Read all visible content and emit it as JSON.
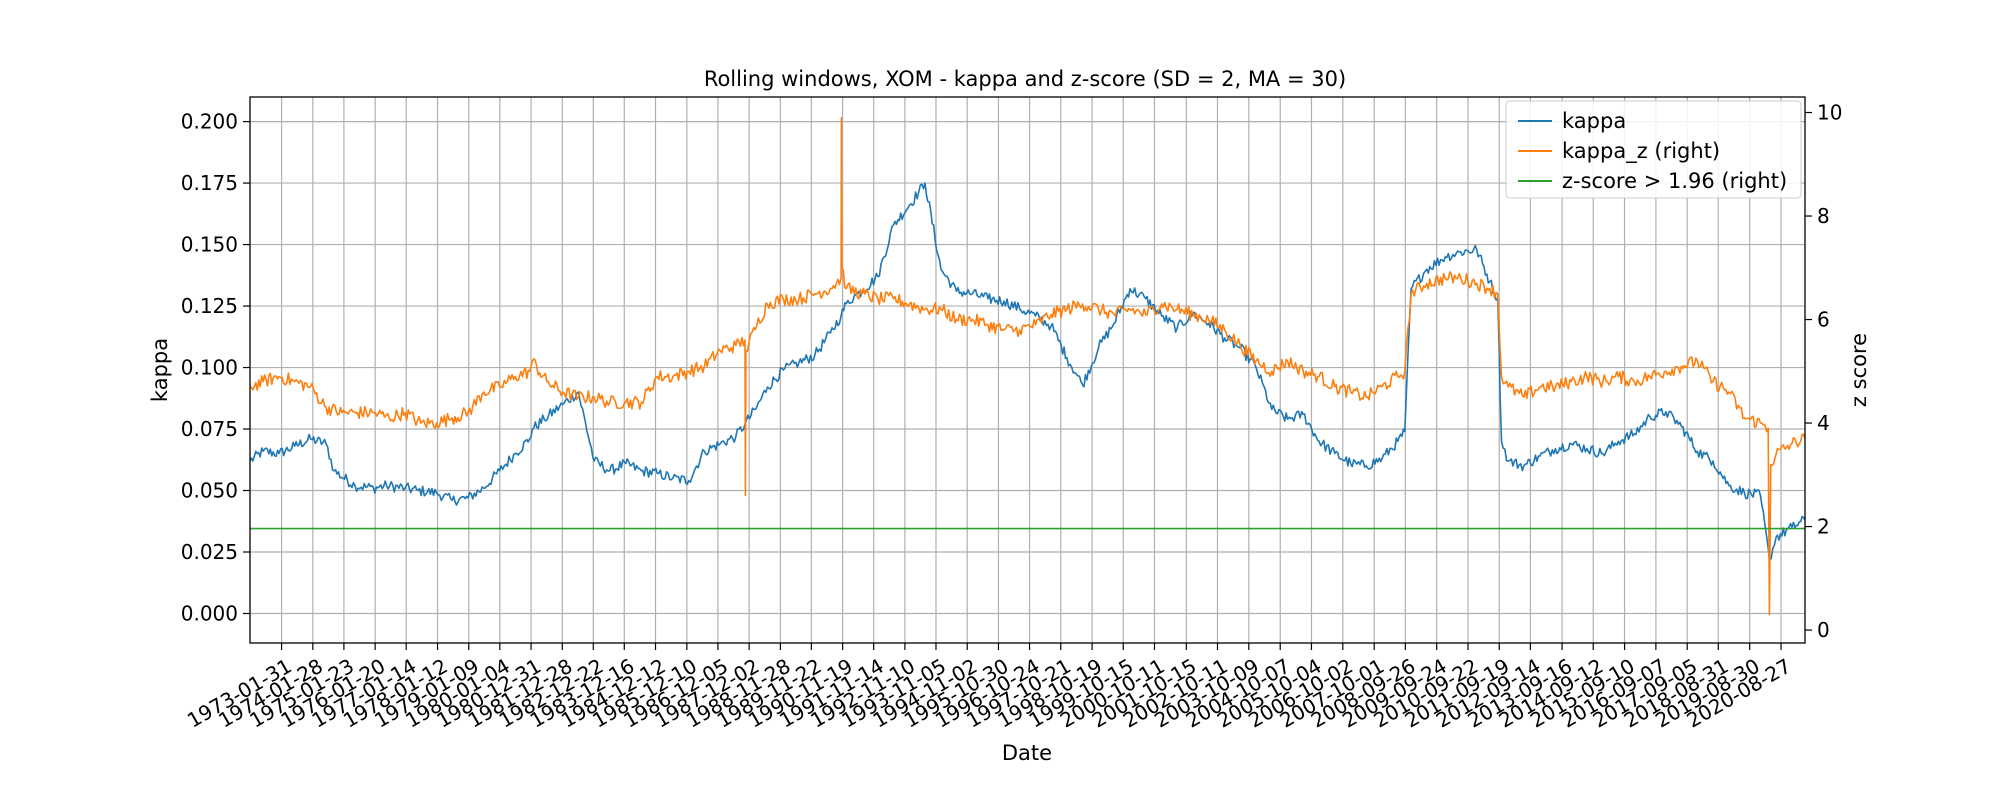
{
  "chart_data": {
    "type": "line",
    "title": "Rolling windows, XOM - kappa and z-score (SD = 2, MA = 30)",
    "xlabel": "Date",
    "ylabel": "kappa",
    "ylabel_right": "z score",
    "ylim": [
      -0.012,
      0.21
    ],
    "ylim_right": [
      -0.25,
      10.3
    ],
    "y_ticks": [
      "0.000",
      "0.025",
      "0.050",
      "0.075",
      "0.100",
      "0.125",
      "0.150",
      "0.175",
      "0.200"
    ],
    "y_ticks_right": [
      "0",
      "2",
      "4",
      "6",
      "8",
      "10"
    ],
    "x_tick_labels": [
      "1973-01-31",
      "1974-01-28",
      "1975-01-23",
      "1976-01-20",
      "1977-01-14",
      "1978-01-12",
      "1979-01-09",
      "1980-01-04",
      "1980-12-31",
      "1981-12-28",
      "1982-12-22",
      "1983-12-16",
      "1984-12-12",
      "1985-12-10",
      "1986-12-05",
      "1987-12-02",
      "1988-11-28",
      "1989-11-22",
      "1990-11-19",
      "1991-11-14",
      "1992-11-10",
      "1993-11-05",
      "1994-11-02",
      "1995-10-30",
      "1996-10-24",
      "1997-10-21",
      "1998-10-19",
      "1999-10-15",
      "2000-10-11",
      "2001-10-15",
      "2002-10-11",
      "2003-10-09",
      "2004-10-07",
      "2005-10-04",
      "2006-10-02",
      "2007-10-01",
      "2008-09-26",
      "2009-09-24",
      "2010-09-22",
      "2011-09-19",
      "2012-09-14",
      "2013-09-16",
      "2014-09-12",
      "2015-09-10",
      "2016-09-07",
      "2017-09-05",
      "2018-08-31",
      "2019-08-30",
      "2020-08-27"
    ],
    "grid": true,
    "legend_position": "top-right",
    "series": [
      {
        "name": "kappa",
        "axis": "left",
        "color": "#1f77b4",
        "x": [
          "1972-01-31",
          "1972-07-01",
          "1973-01-01",
          "1973-07-01",
          "1974-01-01",
          "1974-07-01",
          "1974-10-01",
          "1975-06-01",
          "1976-01-01",
          "1976-06-01",
          "1977-01-01",
          "1977-06-01",
          "1978-01-01",
          "1978-07-01",
          "1979-01-01",
          "1979-07-01",
          "1980-01-01",
          "1980-07-01",
          "1980-12-15",
          "1981-01-15",
          "1981-06-01",
          "1982-01-01",
          "1982-07-01",
          "1983-01-01",
          "1983-07-01",
          "1984-01-01",
          "1984-07-01",
          "1985-01-01",
          "1985-07-01",
          "1986-01-01",
          "1986-07-01",
          "1987-01-01",
          "1987-07-01",
          "1987-10-15",
          "1988-03-01",
          "1988-07-01",
          "1989-01-01",
          "1989-07-01",
          "1990-01-01",
          "1990-07-01",
          "1990-11-01",
          "1991-01-01",
          "1991-04-01",
          "1991-07-01",
          "1992-01-01",
          "1992-07-01",
          "1993-01-01",
          "1993-07-01",
          "1994-01-01",
          "1994-07-01",
          "1995-01-01",
          "1995-07-01",
          "1996-01-01",
          "1996-07-01",
          "1997-01-01",
          "1997-07-01",
          "1998-01-01",
          "1998-07-01",
          "1999-01-01",
          "1999-07-01",
          "2000-01-01",
          "2000-07-01",
          "2001-01-01",
          "2001-07-01",
          "2002-01-01",
          "2002-07-01",
          "2003-01-01",
          "2003-07-01",
          "2004-01-01",
          "2004-07-01",
          "2005-01-01",
          "2005-07-01",
          "2006-01-01",
          "2006-07-01",
          "2007-01-01",
          "2007-07-01",
          "2008-01-01",
          "2008-07-01",
          "2008-09-20",
          "2008-12-01",
          "2009-06-01",
          "2010-01-01",
          "2010-07-01",
          "2011-01-01",
          "2011-06-01",
          "2011-09-01",
          "2011-10-15",
          "2012-01-01",
          "2012-07-01",
          "2013-01-01",
          "2013-07-01",
          "2014-01-01",
          "2014-07-01",
          "2015-01-01",
          "2015-07-01",
          "2016-01-01",
          "2016-07-01",
          "2017-01-01",
          "2017-07-01",
          "2018-01-01",
          "2018-07-01",
          "2019-01-01",
          "2019-07-01",
          "2020-01-01",
          "2020-04-15",
          "2020-07-01",
          "2021-01-01",
          "2021-06-01"
        ],
        "y": [
          0.062,
          0.066,
          0.065,
          0.068,
          0.071,
          0.069,
          0.058,
          0.052,
          0.051,
          0.052,
          0.051,
          0.05,
          0.049,
          0.046,
          0.047,
          0.051,
          0.058,
          0.065,
          0.071,
          0.075,
          0.079,
          0.085,
          0.09,
          0.062,
          0.058,
          0.061,
          0.058,
          0.057,
          0.055,
          0.054,
          0.066,
          0.069,
          0.072,
          0.077,
          0.084,
          0.092,
          0.099,
          0.102,
          0.105,
          0.114,
          0.121,
          0.126,
          0.129,
          0.131,
          0.137,
          0.158,
          0.166,
          0.175,
          0.14,
          0.131,
          0.13,
          0.128,
          0.127,
          0.124,
          0.121,
          0.117,
          0.104,
          0.093,
          0.108,
          0.118,
          0.132,
          0.128,
          0.121,
          0.116,
          0.122,
          0.118,
          0.112,
          0.108,
          0.1,
          0.083,
          0.079,
          0.081,
          0.07,
          0.065,
          0.061,
          0.06,
          0.063,
          0.07,
          0.074,
          0.132,
          0.14,
          0.145,
          0.147,
          0.148,
          0.135,
          0.128,
          0.07,
          0.062,
          0.06,
          0.064,
          0.067,
          0.069,
          0.067,
          0.065,
          0.07,
          0.073,
          0.08,
          0.082,
          0.076,
          0.066,
          0.062,
          0.052,
          0.049,
          0.048,
          0.022,
          0.031,
          0.035,
          0.038
        ]
      },
      {
        "name": "kappa_z (right)",
        "axis": "right",
        "color": "#ff7f0e",
        "x": [
          "1972-01-31",
          "1972-07-01",
          "1973-01-01",
          "1973-07-01",
          "1974-01-01",
          "1974-07-01",
          "1975-01-01",
          "1975-07-01",
          "1976-01-01",
          "1976-07-01",
          "1977-01-01",
          "1977-07-01",
          "1978-01-01",
          "1978-07-01",
          "1979-01-01",
          "1979-07-01",
          "1980-01-01",
          "1980-07-01",
          "1980-12-15",
          "1981-01-15",
          "1981-07-01",
          "1982-01-01",
          "1982-07-01",
          "1983-01-01",
          "1983-07-01",
          "1984-01-01",
          "1984-07-01",
          "1985-01-01",
          "1985-07-01",
          "1986-01-01",
          "1986-07-01",
          "1987-01-01",
          "1987-07-01",
          "1987-10-15",
          "1987-10-20",
          "1987-10-25",
          "1988-03-01",
          "1988-07-01",
          "1989-01-01",
          "1989-07-01",
          "1990-01-01",
          "1990-07-01",
          "1990-11-01",
          "1990-11-05",
          "1990-11-10",
          "1991-01-01",
          "1991-07-01",
          "1992-01-01",
          "1992-07-01",
          "1993-01-01",
          "1993-07-01",
          "1994-01-01",
          "1994-07-01",
          "1995-01-01",
          "1995-07-01",
          "1996-01-01",
          "1996-07-01",
          "1997-01-01",
          "1997-07-01",
          "1998-01-01",
          "1998-07-01",
          "1999-01-01",
          "1999-07-01",
          "2000-01-01",
          "2000-07-01",
          "2001-01-01",
          "2001-07-01",
          "2002-01-01",
          "2002-07-01",
          "2003-01-01",
          "2003-07-01",
          "2004-01-01",
          "2004-07-01",
          "2005-01-01",
          "2005-07-01",
          "2006-01-01",
          "2006-07-01",
          "2007-01-01",
          "2007-07-01",
          "2008-01-01",
          "2008-07-01",
          "2008-09-20",
          "2008-12-01",
          "2009-06-01",
          "2010-01-01",
          "2010-07-01",
          "2011-01-01",
          "2011-06-01",
          "2011-09-01",
          "2011-10-15",
          "2012-01-01",
          "2012-07-01",
          "2013-01-01",
          "2013-07-01",
          "2014-01-01",
          "2014-07-01",
          "2015-01-01",
          "2015-07-01",
          "2016-01-01",
          "2016-07-01",
          "2017-01-01",
          "2017-07-01",
          "2018-01-01",
          "2018-07-01",
          "2019-01-01",
          "2019-07-01",
          "2020-01-01",
          "2020-04-01",
          "2020-04-15",
          "2020-05-01",
          "2020-07-01",
          "2021-01-01",
          "2021-06-01"
        ],
        "y": [
          4.7,
          4.8,
          4.9,
          4.8,
          4.7,
          4.3,
          4.2,
          4.2,
          4.2,
          4.1,
          4.2,
          4.0,
          4.0,
          4.1,
          4.2,
          4.6,
          4.7,
          4.9,
          5.0,
          5.2,
          4.8,
          4.6,
          4.5,
          4.5,
          4.4,
          4.4,
          4.4,
          4.9,
          4.9,
          5.0,
          5.1,
          5.4,
          5.5,
          5.6,
          2.6,
          5.4,
          5.9,
          6.3,
          6.4,
          6.4,
          6.5,
          6.6,
          6.8,
          9.9,
          7.0,
          6.6,
          6.5,
          6.4,
          6.4,
          6.3,
          6.2,
          6.2,
          6.0,
          6.0,
          5.9,
          5.8,
          5.8,
          5.9,
          6.1,
          6.2,
          6.3,
          6.2,
          6.1,
          6.2,
          6.1,
          6.3,
          6.2,
          6.1,
          6.0,
          5.8,
          5.5,
          5.2,
          5.0,
          5.2,
          5.0,
          4.9,
          4.7,
          4.6,
          4.5,
          4.7,
          4.9,
          5.0,
          6.5,
          6.7,
          6.8,
          6.8,
          6.7,
          6.6,
          6.5,
          4.9,
          4.7,
          4.5,
          4.7,
          4.7,
          4.8,
          4.9,
          4.8,
          4.9,
          4.8,
          4.9,
          5.0,
          5.1,
          5.2,
          4.8,
          4.6,
          4.1,
          4.0,
          3.9,
          0.3,
          3.2,
          3.4,
          3.6,
          3.7
        ]
      },
      {
        "name": "z-score > 1.96 (right)",
        "axis": "right",
        "color": "#2ca02c",
        "x": [
          "1972-01-31",
          "2021-06-01"
        ],
        "y": [
          1.96,
          1.96
        ]
      }
    ]
  }
}
